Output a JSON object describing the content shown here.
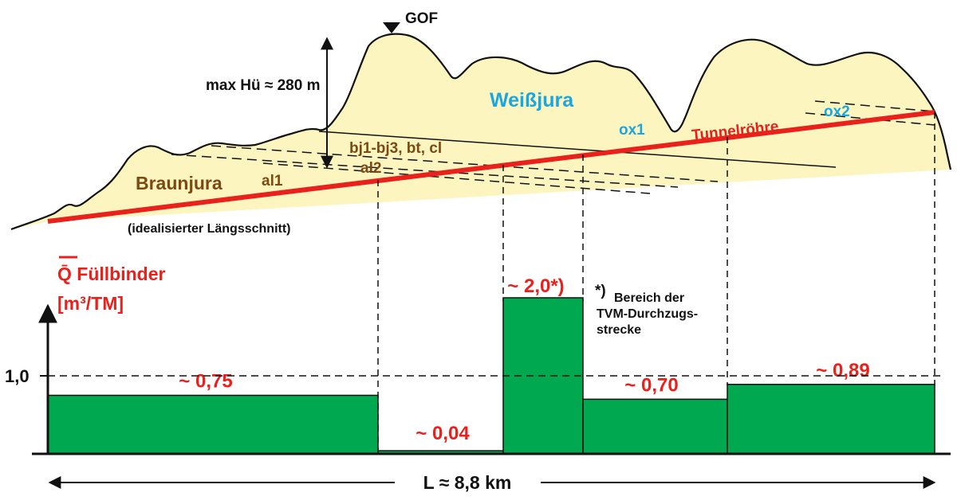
{
  "profile": {
    "gof_label": "GOF",
    "overburden_label": "max Hü ≈ 280 m",
    "formation_brown": "Braunjura",
    "formation_white": "Weißjura",
    "layer_al1": "al1",
    "layer_al2": "al2",
    "layer_bj": "bj1-bj3, bt, cl",
    "layer_ox1": "ox1",
    "layer_ox2": "ox2",
    "tunnel_label": "Tunnelröhre",
    "caption": "(idealisierter Längsschnitt)"
  },
  "chart_data": {
    "type": "bar",
    "title": "Q̄ Füllbinder",
    "ylabel": "[m³/TM]",
    "y_tick": "1,0",
    "reference_line": 1.0,
    "ylim": [
      0,
      2.8
    ],
    "segments": [
      {
        "label": "~ 0,75",
        "value": 0.75
      },
      {
        "label": "~ 0,04",
        "value": 0.04
      },
      {
        "label": "~ 2,0*)",
        "value": 2.0
      },
      {
        "label": "~ 0,70",
        "value": 0.7
      },
      {
        "label": "~ 0,89",
        "value": 0.89
      }
    ],
    "footnote_mark": "*)",
    "footnote_text": "Bereich der TVM-Durchzugs- strecke",
    "length_label": "L ≈ 8,8 km",
    "colors": {
      "bar": "#00a94f",
      "values": "#e8211d",
      "tunnel": "#e8211d"
    }
  }
}
